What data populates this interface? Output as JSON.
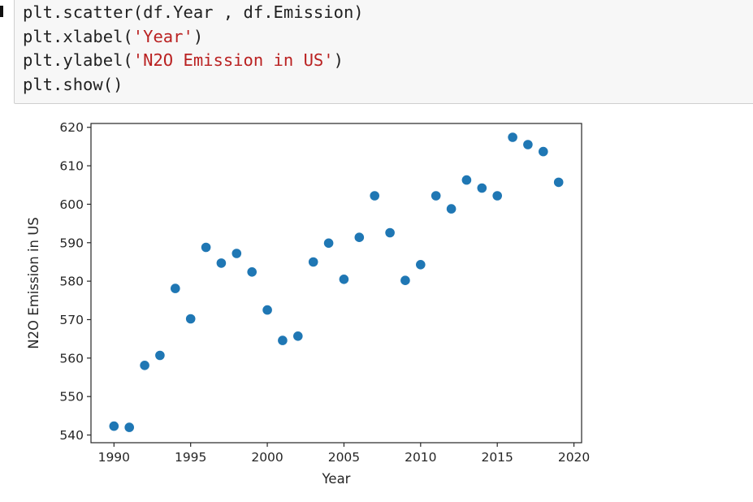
{
  "code_cell": {
    "lines": [
      {
        "parts": [
          {
            "text": "plt.scatter(df.Year , df.Emission)",
            "kind": "code"
          }
        ]
      },
      {
        "parts": [
          {
            "text": "plt.xlabel(",
            "kind": "code"
          },
          {
            "text": "'Year'",
            "kind": "string"
          },
          {
            "text": ")",
            "kind": "code"
          }
        ]
      },
      {
        "parts": [
          {
            "text": "plt.ylabel(",
            "kind": "code"
          },
          {
            "text": "'N2O Emission in US'",
            "kind": "string"
          },
          {
            "text": ")",
            "kind": "code"
          }
        ]
      },
      {
        "parts": [
          {
            "text": "plt.show()",
            "kind": "code"
          }
        ]
      }
    ]
  },
  "colors": {
    "point": "#1f77b4",
    "string_token": "#ba2121",
    "code_text": "#212121",
    "cell_background": "#f7f7f7",
    "cell_border": "#cfcfcf"
  },
  "chart_data": {
    "type": "scatter",
    "title": "",
    "xlabel": "Year",
    "ylabel": "N2O Emission in US",
    "xlim": [
      1988.5,
      2020.5
    ],
    "ylim": [
      538,
      621
    ],
    "xticks": [
      1990,
      1995,
      2000,
      2005,
      2010,
      2015,
      2020
    ],
    "yticks": [
      540,
      550,
      560,
      570,
      580,
      590,
      600,
      610,
      620
    ],
    "grid": false,
    "legend": "none",
    "series": [
      {
        "x": [
          1990,
          1991,
          1992,
          1993,
          1994,
          1995,
          1996,
          1997,
          1998,
          1999,
          2000,
          2001,
          2002,
          2003,
          2004,
          2005,
          2006,
          2007,
          2008,
          2009,
          2010,
          2011,
          2012,
          2013,
          2014,
          2015,
          2016,
          2017,
          2018,
          2019
        ],
        "y": [
          542.3,
          542.0,
          558.1,
          560.7,
          578.1,
          570.2,
          588.8,
          584.7,
          587.2,
          582.4,
          572.5,
          564.6,
          565.7,
          585.0,
          589.9,
          580.5,
          591.4,
          602.2,
          592.6,
          580.2,
          584.3,
          602.2,
          598.8,
          606.3,
          604.2,
          602.2,
          617.4,
          615.5,
          613.7,
          605.7
        ]
      }
    ]
  }
}
